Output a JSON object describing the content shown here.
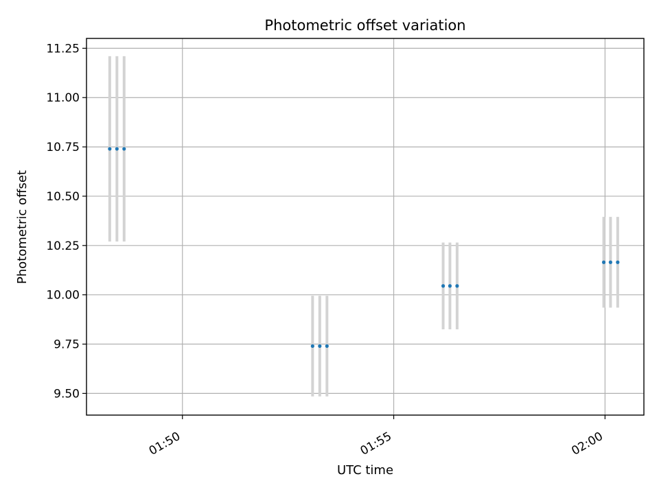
{
  "chart_data": {
    "type": "scatter",
    "title": "Photometric offset variation",
    "xlabel": "UTC time",
    "ylabel": "Photometric offset",
    "x_axis": {
      "ticks": [
        "01:50",
        "01:55",
        "02:00"
      ],
      "tick_minutes": [
        110,
        115,
        120
      ],
      "xlim_minutes": [
        107.73,
        120.92
      ]
    },
    "y_axis": {
      "ticks": [
        9.5,
        9.75,
        10.0,
        10.25,
        10.5,
        10.75,
        11.0,
        11.25
      ],
      "tick_labels": [
        "9.50",
        "9.75",
        "10.00",
        "10.25",
        "10.50",
        "10.75",
        "11.00",
        "11.25"
      ],
      "ylim": [
        9.39,
        11.3
      ]
    },
    "grid": true,
    "colors": {
      "marker": "#1f77b4",
      "errorbar": "#d3d3d3",
      "grid": "#b0b0b0"
    },
    "series": [
      {
        "points": [
          {
            "t": "01:48:17",
            "x": 108.28,
            "y": 10.74,
            "err": 0.47
          },
          {
            "t": "01:48:27",
            "x": 108.45,
            "y": 10.74,
            "err": 0.47
          },
          {
            "t": "01:48:37",
            "x": 108.62,
            "y": 10.74,
            "err": 0.47
          },
          {
            "t": "01:53:05",
            "x": 113.08,
            "y": 9.74,
            "err": 0.255
          },
          {
            "t": "01:53:15",
            "x": 113.25,
            "y": 9.74,
            "err": 0.255
          },
          {
            "t": "01:53:25",
            "x": 113.42,
            "y": 9.74,
            "err": 0.255
          },
          {
            "t": "01:56:10",
            "x": 116.17,
            "y": 10.045,
            "err": 0.22
          },
          {
            "t": "01:56:20",
            "x": 116.33,
            "y": 10.045,
            "err": 0.22
          },
          {
            "t": "01:56:30",
            "x": 116.5,
            "y": 10.045,
            "err": 0.22
          },
          {
            "t": "01:59:58",
            "x": 119.97,
            "y": 10.165,
            "err": 0.23
          },
          {
            "t": "02:00:08",
            "x": 120.13,
            "y": 10.165,
            "err": 0.23
          },
          {
            "t": "02:00:18",
            "x": 120.3,
            "y": 10.165,
            "err": 0.23
          }
        ]
      }
    ]
  }
}
